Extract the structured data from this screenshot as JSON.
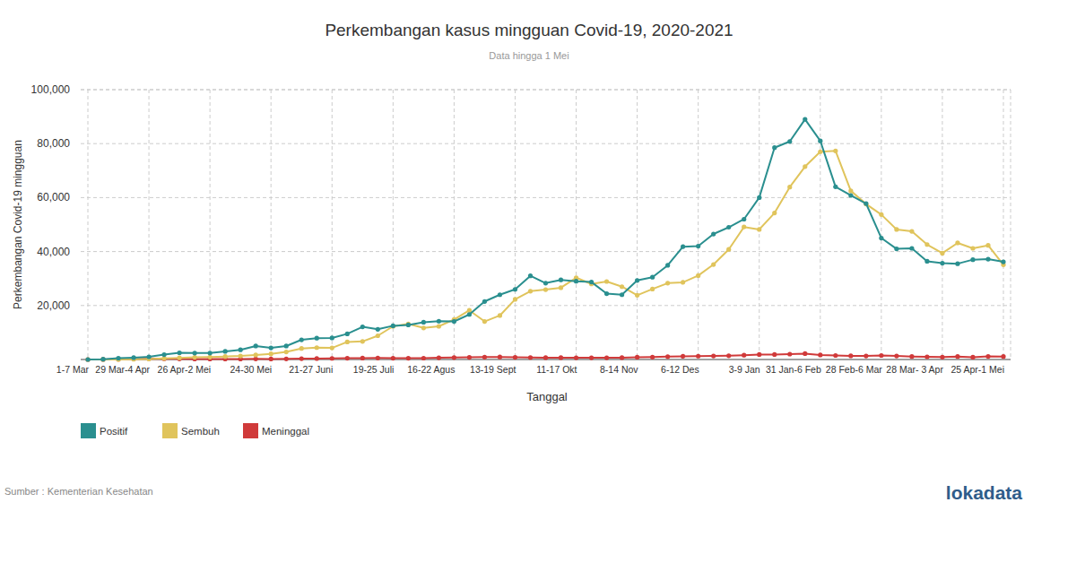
{
  "chart_data": {
    "type": "line",
    "title": "Perkembangan kasus mingguan Covid-19, 2020-2021",
    "subtitle": "Data hingga 1 Mei",
    "x_label": "Tanggal",
    "y_label": "Perkembangan Covid-19 mingguan",
    "source": "Sumber : Kementerian Kesehatan",
    "logo": "lokadata",
    "categories": [
      "1-7 Mar",
      null,
      null,
      null,
      "29 Mar-4 Apr",
      null,
      null,
      null,
      "26 Apr-2 Mei",
      null,
      null,
      null,
      "24-30 Mei",
      null,
      null,
      null,
      "21-27 Juni",
      null,
      null,
      null,
      "19-25 Juli",
      null,
      null,
      null,
      "16-22 Agus",
      null,
      null,
      null,
      "13-19 Sept",
      null,
      null,
      null,
      "11-17 Okt",
      null,
      null,
      null,
      "8-14 Nov",
      null,
      null,
      null,
      "6-12 Des",
      null,
      null,
      null,
      "3-9 Jan",
      null,
      null,
      null,
      "31 Jan-6 Feb",
      null,
      null,
      null,
      "28 Feb-6 Mar",
      null,
      null,
      null,
      "28 Mar- 3 Apr",
      null,
      null,
      null,
      "25 Apr-1 Mei"
    ],
    "series": [
      {
        "name": "Positif",
        "color": "#2a8f8f",
        "marker": "circle",
        "values": [
          2,
          100,
          500,
          700,
          1000,
          1800,
          2500,
          2400,
          2400,
          3000,
          3600,
          5000,
          4300,
          5000,
          7300,
          7900,
          8000,
          9500,
          12100,
          11200,
          12500,
          12800,
          13800,
          14200,
          14100,
          16700,
          21500,
          24000,
          26000,
          31000,
          28300,
          29500,
          29000,
          28700,
          24400,
          24000,
          29300,
          30500,
          34900,
          41800,
          42000,
          46500,
          49000,
          52000,
          60000,
          78500,
          80800,
          89000,
          81000,
          64000,
          60800,
          57800,
          45000,
          41000,
          41200,
          36400,
          35700,
          35500,
          37000,
          37200,
          36200
        ]
      },
      {
        "name": "Sembuh",
        "color": "#e0c45c",
        "marker": "circle",
        "values": [
          0,
          10,
          30,
          100,
          200,
          400,
          600,
          800,
          900,
          1100,
          1300,
          1700,
          2100,
          2800,
          4100,
          4400,
          4300,
          6500,
          6700,
          8800,
          12300,
          13200,
          11700,
          12300,
          14800,
          18200,
          14100,
          16300,
          22300,
          25300,
          25900,
          26600,
          30300,
          28000,
          28900,
          27000,
          23800,
          26100,
          28300,
          28600,
          31100,
          35200,
          40800,
          49100,
          48200,
          54300,
          63900,
          71500,
          77000,
          77300,
          62500,
          57600,
          53700,
          48200,
          47500,
          42600,
          39400,
          43200,
          41200,
          42300,
          35100
        ]
      },
      {
        "name": "Meninggal",
        "color": "#d03a3a",
        "marker": "circle",
        "values": [
          0,
          10,
          100,
          200,
          300,
          250,
          230,
          200,
          180,
          170,
          190,
          240,
          200,
          230,
          300,
          350,
          420,
          470,
          520,
          560,
          480,
          470,
          500,
          630,
          720,
          800,
          900,
          950,
          800,
          750,
          700,
          680,
          650,
          640,
          650,
          700,
          850,
          900,
          1050,
          1200,
          1250,
          1300,
          1400,
          1600,
          1850,
          1850,
          2000,
          2200,
          1700,
          1500,
          1350,
          1300,
          1500,
          1300,
          1100,
          1000,
          900,
          1100,
          850,
          1150,
          1100
        ]
      }
    ],
    "ylim": [
      0,
      100000
    ],
    "yticks": [
      {
        "value": 20000,
        "label": "20,000"
      },
      {
        "value": 40000,
        "label": "40,000"
      },
      {
        "value": 60000,
        "label": "60,000"
      },
      {
        "value": 80000,
        "label": "80,000"
      },
      {
        "value": 100000,
        "label": "100,000"
      }
    ],
    "grid": true,
    "legend": "bottom-left"
  }
}
